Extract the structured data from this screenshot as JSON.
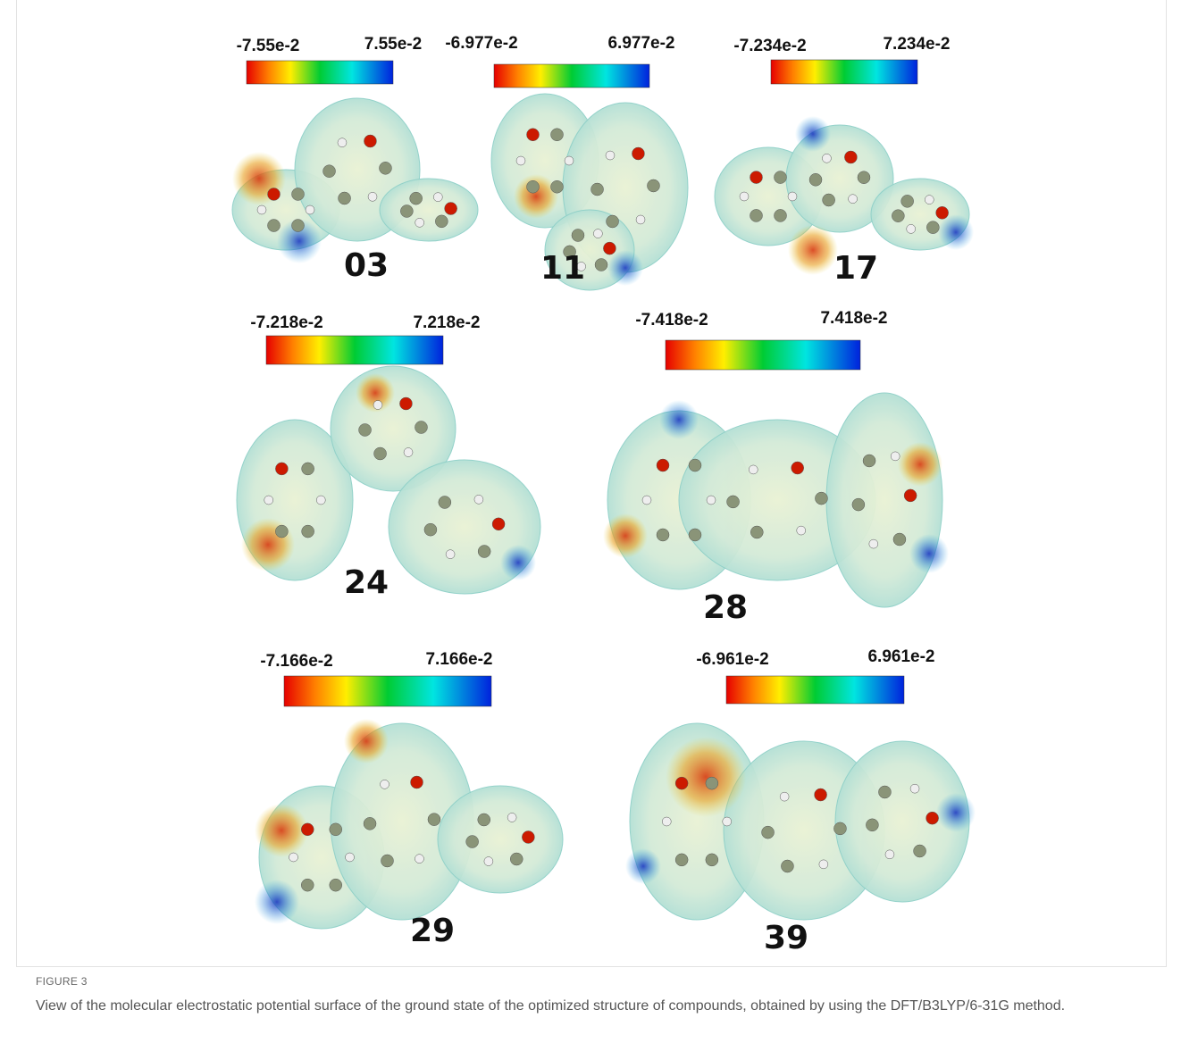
{
  "figure": {
    "label": "FIGURE 3",
    "caption": "View of the molecular electrostatic potential surface of the ground state of the optimized structure of compounds, obtained by using the DFT/B3LYP/6-31G method.",
    "panels": [
      {
        "compound": "03",
        "colorbar_min": "-7.55e-2",
        "colorbar_max": "7.55e-2"
      },
      {
        "compound": "11",
        "colorbar_min": "-6.977e-2",
        "colorbar_max": "6.977e-2"
      },
      {
        "compound": "17",
        "colorbar_min": "-7.234e-2",
        "colorbar_max": "7.234e-2"
      },
      {
        "compound": "24",
        "colorbar_min": "-7.218e-2",
        "colorbar_max": "7.218e-2"
      },
      {
        "compound": "28",
        "colorbar_min": "-7.418e-2",
        "colorbar_max": "7.418e-2"
      },
      {
        "compound": "29",
        "colorbar_min": "-7.166e-2",
        "colorbar_max": "7.166e-2"
      },
      {
        "compound": "39",
        "colorbar_min": "-6.961e-2",
        "colorbar_max": "6.961e-2"
      }
    ]
  }
}
